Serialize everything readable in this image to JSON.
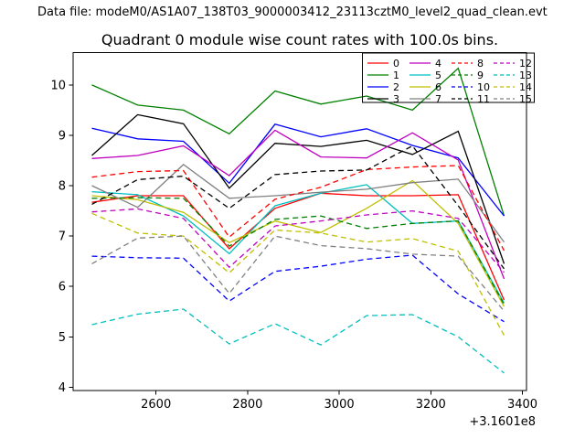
{
  "header": {
    "data_file_label": "Data file: modeM0/AS1A07_138T03_9000003412_23113cztM0_level2_quad_clean.evt",
    "title": "Quadrant 0 module wise count rates with 100.0s bins."
  },
  "chart_data": {
    "type": "line",
    "title": "Quadrant 0 module wise count rates with 100.0s bins.",
    "xlabel": "",
    "ylabel": "",
    "x_axis_offset_label": "+3.1601e8",
    "grid": false,
    "legend_position": "upper right",
    "legend_columns": 4,
    "xlim": [
      2419,
      3409
    ],
    "ylim": [
      3.93,
      10.64
    ],
    "xticks": [
      2600,
      2800,
      3000,
      3200,
      3400
    ],
    "yticks": [
      4,
      5,
      6,
      7,
      8,
      9,
      10
    ],
    "x": [
      2460,
      2560,
      2660,
      2760,
      2860,
      2960,
      3060,
      3160,
      3260,
      3360
    ],
    "series": [
      {
        "name": "0",
        "color": "#ff0000",
        "style": "solid",
        "values": [
          7.67,
          7.8,
          7.8,
          6.75,
          7.55,
          7.85,
          7.8,
          7.8,
          7.82,
          5.73
        ]
      },
      {
        "name": "1",
        "color": "#008000",
        "style": "solid",
        "values": [
          10.0,
          9.6,
          9.5,
          9.03,
          9.88,
          9.62,
          9.78,
          9.5,
          10.33,
          7.4
        ]
      },
      {
        "name": "2",
        "color": "#0000ff",
        "style": "solid",
        "values": [
          9.14,
          8.93,
          8.88,
          8.05,
          9.22,
          8.97,
          9.13,
          8.8,
          8.55,
          7.4
        ]
      },
      {
        "name": "3",
        "color": "#000000",
        "style": "solid",
        "values": [
          8.6,
          9.41,
          9.23,
          7.95,
          8.84,
          8.78,
          8.9,
          8.62,
          9.08,
          6.45
        ]
      },
      {
        "name": "4",
        "color": "#bf00bf",
        "style": "solid",
        "values": [
          8.54,
          8.6,
          8.79,
          8.2,
          9.1,
          8.57,
          8.55,
          9.05,
          8.51,
          6.15
        ]
      },
      {
        "name": "5",
        "color": "#00bfbf",
        "style": "solid",
        "values": [
          7.88,
          7.82,
          7.4,
          6.65,
          7.6,
          7.85,
          8.02,
          7.25,
          7.3,
          5.67
        ]
      },
      {
        "name": "6",
        "color": "#bfbf00",
        "style": "solid",
        "values": [
          7.8,
          7.72,
          7.47,
          6.87,
          7.3,
          7.07,
          7.55,
          8.1,
          7.25,
          5.6
        ]
      },
      {
        "name": "7",
        "color": "#808080",
        "style": "solid",
        "values": [
          8.0,
          7.57,
          8.42,
          7.75,
          7.8,
          7.87,
          7.93,
          8.06,
          8.13,
          6.88
        ]
      },
      {
        "name": "8",
        "color": "#ff0000",
        "style": "dashed",
        "values": [
          8.17,
          8.28,
          8.3,
          6.98,
          7.73,
          7.97,
          8.32,
          8.37,
          8.4,
          6.71
        ]
      },
      {
        "name": "9",
        "color": "#008000",
        "style": "dashed",
        "values": [
          7.75,
          7.76,
          7.75,
          6.8,
          7.33,
          7.4,
          7.15,
          7.25,
          7.3,
          5.64
        ]
      },
      {
        "name": "10",
        "color": "#0000ff",
        "style": "dashed",
        "values": [
          6.6,
          6.57,
          6.56,
          5.71,
          6.3,
          6.4,
          6.54,
          6.62,
          5.85,
          5.3
        ]
      },
      {
        "name": "11",
        "color": "#000000",
        "style": "dashed",
        "values": [
          7.63,
          8.12,
          8.19,
          7.55,
          8.22,
          8.29,
          8.31,
          8.79,
          7.6,
          6.35
        ]
      },
      {
        "name": "12",
        "color": "#bf00bf",
        "style": "dashed",
        "values": [
          7.48,
          7.54,
          7.35,
          6.38,
          7.2,
          7.3,
          7.42,
          7.5,
          7.35,
          6.28
        ]
      },
      {
        "name": "13",
        "color": "#00bfbf",
        "style": "dashed",
        "values": [
          5.24,
          5.45,
          5.55,
          4.86,
          5.26,
          4.84,
          5.42,
          5.44,
          5.0,
          4.28
        ]
      },
      {
        "name": "14",
        "color": "#bfbf00",
        "style": "dashed",
        "values": [
          7.45,
          7.06,
          7.0,
          6.27,
          7.12,
          7.06,
          6.88,
          6.95,
          6.7,
          5.03
        ]
      },
      {
        "name": "15",
        "color": "#808080",
        "style": "dashed",
        "values": [
          6.45,
          6.96,
          7.0,
          5.86,
          7.0,
          6.81,
          6.75,
          6.64,
          6.6,
          5.51
        ]
      }
    ]
  }
}
